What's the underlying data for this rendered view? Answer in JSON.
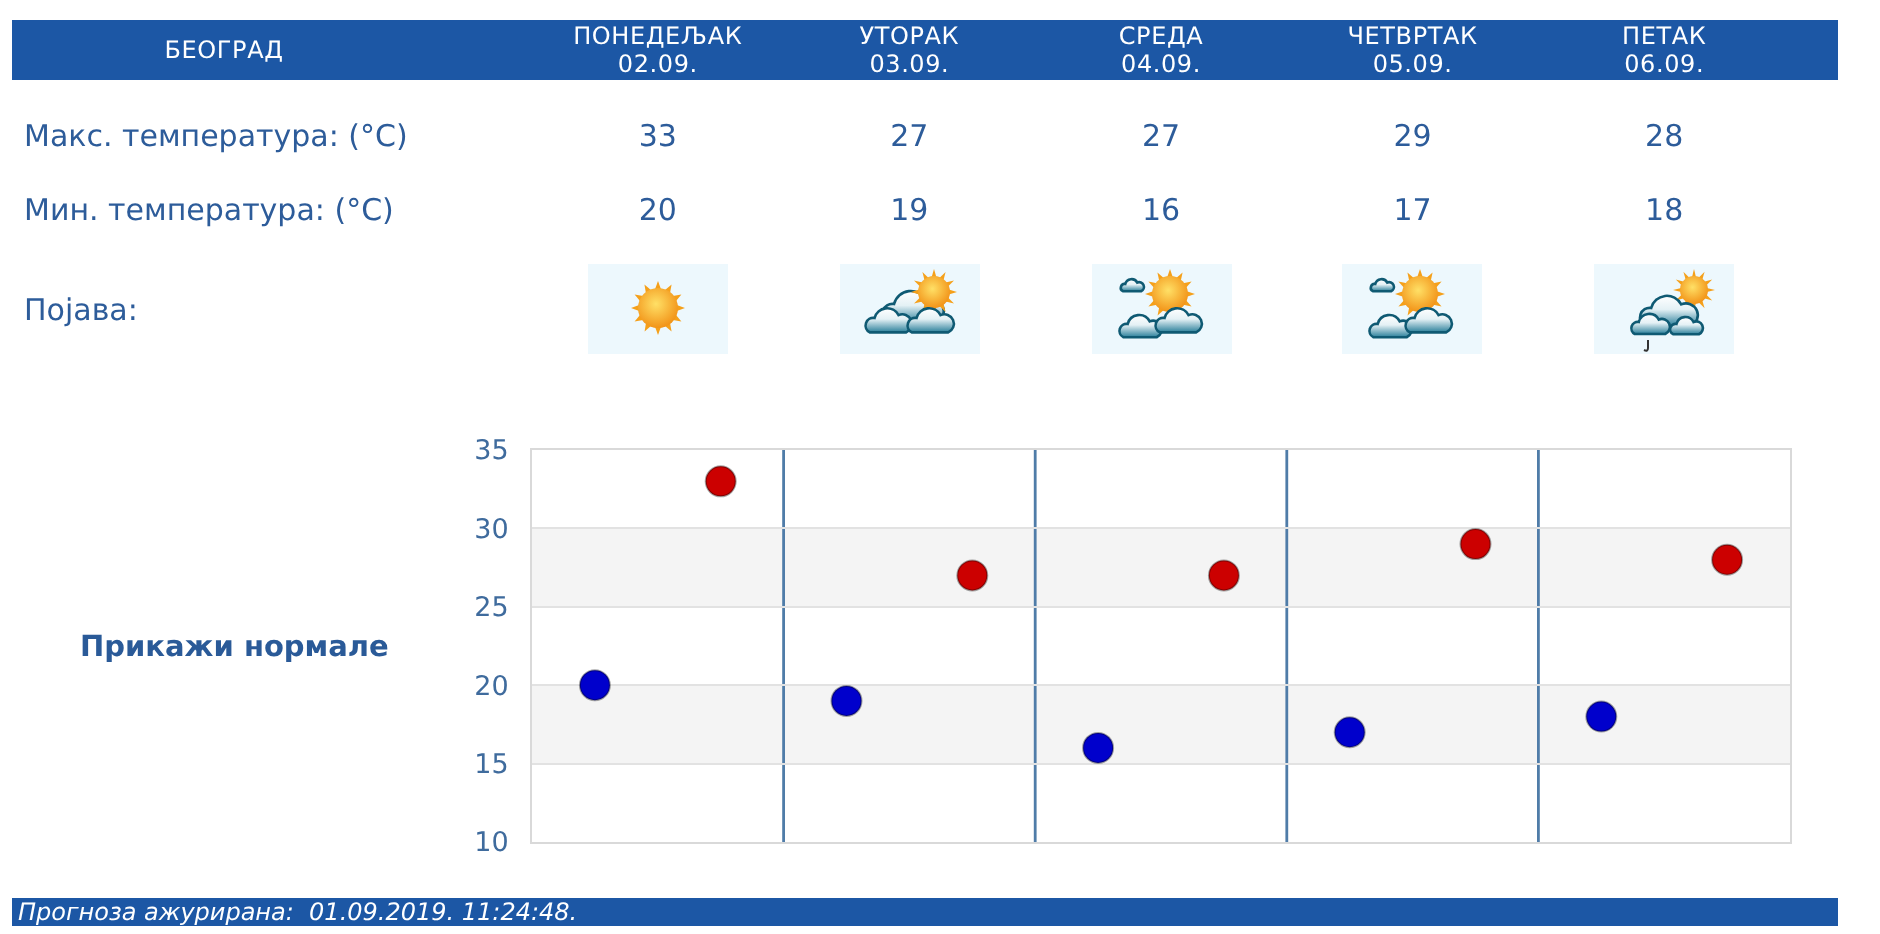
{
  "chart_data": {
    "type": "scatter",
    "title": "БЕОГРАД",
    "categories": [
      null,
      null,
      null,
      null,
      null
    ],
    "series": [
      {
        "color": "#cc0000",
        "values": [
          33,
          27,
          27,
          29,
          28
        ]
      },
      {
        "color": "#0000cc",
        "values": [
          20,
          19,
          16,
          17,
          18
        ]
      }
    ],
    "ylim": [
      10,
      35
    ],
    "yticks": [
      10,
      15,
      20,
      25,
      30,
      35
    ],
    "grid": true,
    "marker": "circle",
    "tick_labels": "y",
    "data_labels": true,
    "bands": [
      {
        "axis": "y",
        "from": 25,
        "to": 30,
        "color": "#f4f4f4"
      },
      {
        "axis": "y",
        "from": 15,
        "to": 20,
        "color": "#f4f4f4"
      }
    ],
    "annotations": [
      "ПОНЕДЕЉАК\n02.09.",
      "УТОРАК\n03.09.",
      "СРЕДА\n04.09.",
      "ЧЕТВРТАК\n05.09.",
      "ПЕТАК\n06.09.",
      "Макс. температура: (°C)",
      "Мин. температура: (°C)",
      "Појава:",
      "Прикажи нормале",
      "Прогноза ажурирана:  01.09.2019. 11:24:48."
    ]
  }
}
